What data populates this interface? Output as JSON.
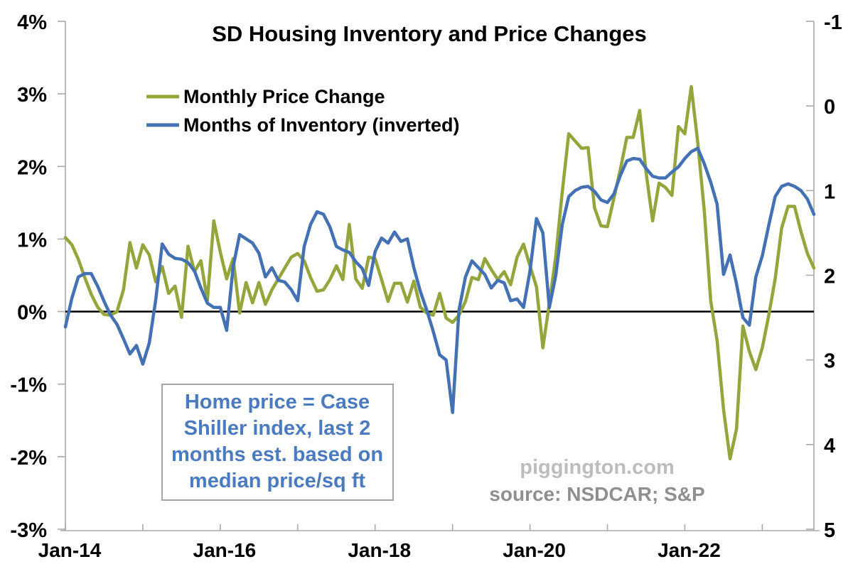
{
  "title": "SD Housing Inventory and Price Changes",
  "legend": [
    {
      "label": "Monthly Price Change",
      "color": "#94A53C"
    },
    {
      "label": "Months of Inventory (inverted)",
      "color": "#4471B3"
    }
  ],
  "annotation_box": {
    "lines": [
      "Home price = Case",
      "Shiller index, last 2",
      "months est. based on",
      "median price/sq ft"
    ],
    "text_color": "#4A7ABF",
    "border_color": "#A6A6A6"
  },
  "watermark": {
    "line1": "piggington.com",
    "line2": "source: NSDCAR; S&P",
    "line1_color": "#BDBDBD",
    "line2_color": "#8F8F8F"
  },
  "colors": {
    "axis": "#A9A9A9",
    "zero_line": "#000000",
    "background": "#FFFFFF"
  },
  "chart_data": {
    "type": "line",
    "title": "SD Housing Inventory and Price Changes",
    "x_unit": "month",
    "x_first": "Jan-14",
    "x_last": "Sep-23",
    "n_points": 117,
    "grid": false,
    "zero_line": true,
    "legend_position": "top-left",
    "x_tick_labels": [
      "Jan-14",
      "",
      "Jan-16",
      "",
      "Jan-18",
      "",
      "Jan-20",
      "",
      "Jan-22",
      ""
    ],
    "left_axis": {
      "max": 4,
      "min": -3,
      "unit": "%",
      "tick_labels": [
        "4%",
        "3%",
        "2%",
        "1%",
        "0%",
        "-1%",
        "-2%",
        "-3%"
      ]
    },
    "right_axis": {
      "max": 5,
      "min": -1,
      "inverted": true,
      "tick_labels": [
        "-1",
        "0",
        "1",
        "2",
        "3",
        "4",
        "5"
      ]
    },
    "series": [
      {
        "name": "Monthly Price Change",
        "axis": "left",
        "color": "#94A53C",
        "values": [
          1.02,
          0.92,
          0.72,
          0.47,
          0.24,
          0.06,
          -0.04,
          -0.05,
          0.0,
          0.3,
          0.95,
          0.6,
          0.92,
          0.78,
          0.41,
          0.62,
          0.25,
          0.35,
          -0.08,
          0.9,
          0.55,
          0.7,
          0.15,
          1.25,
          0.82,
          0.45,
          0.73,
          -0.02,
          0.4,
          0.12,
          0.4,
          0.1,
          0.3,
          0.45,
          0.6,
          0.75,
          0.8,
          0.7,
          0.47,
          0.28,
          0.3,
          0.44,
          0.63,
          0.44,
          1.2,
          0.45,
          0.32,
          0.75,
          0.73,
          0.44,
          0.14,
          0.39,
          0.39,
          0.13,
          0.42,
          0.06,
          -0.02,
          -0.05,
          0.25,
          -0.09,
          -0.15,
          -0.05,
          0.14,
          0.47,
          0.44,
          0.73,
          0.58,
          0.44,
          0.55,
          0.37,
          0.75,
          0.93,
          0.63,
          0.34,
          -0.5,
          0.11,
          0.76,
          1.65,
          2.45,
          2.35,
          2.25,
          2.26,
          1.43,
          1.18,
          1.17,
          1.56,
          1.96,
          2.4,
          2.4,
          2.77,
          1.91,
          1.25,
          1.77,
          1.71,
          1.6,
          2.55,
          2.45,
          3.1,
          2.33,
          1.4,
          0.15,
          -0.4,
          -1.35,
          -2.03,
          -1.62,
          -0.2,
          -0.55,
          -0.8,
          -0.5,
          -0.05,
          0.45,
          1.15,
          1.45,
          1.45,
          1.1,
          0.8,
          0.6
        ]
      },
      {
        "name": "Months of Inventory (inverted)",
        "axis": "right",
        "color": "#4471B3",
        "values": [
          2.61,
          2.27,
          2.02,
          1.98,
          1.98,
          2.13,
          2.31,
          2.47,
          2.58,
          2.75,
          2.93,
          2.83,
          3.05,
          2.8,
          2.29,
          1.63,
          1.75,
          1.8,
          1.81,
          1.85,
          1.95,
          2.15,
          2.33,
          2.38,
          2.38,
          2.65,
          1.9,
          1.52,
          1.57,
          1.62,
          1.74,
          2.02,
          1.91,
          2.06,
          2.08,
          2.17,
          2.3,
          1.66,
          1.4,
          1.25,
          1.28,
          1.43,
          1.66,
          1.7,
          1.73,
          1.84,
          1.92,
          2.12,
          1.72,
          1.56,
          1.62,
          1.49,
          1.6,
          1.57,
          1.91,
          2.19,
          2.41,
          2.66,
          2.94,
          3.0,
          3.62,
          2.41,
          2.02,
          1.83,
          1.91,
          1.99,
          2.15,
          2.06,
          2.09,
          2.3,
          2.28,
          2.38,
          1.95,
          1.33,
          1.5,
          2.38,
          2.0,
          1.4,
          1.07,
          1.0,
          0.96,
          0.95,
          1.01,
          1.11,
          1.14,
          1.04,
          0.82,
          0.65,
          0.62,
          0.63,
          0.74,
          0.83,
          0.85,
          0.85,
          0.78,
          0.72,
          0.62,
          0.54,
          0.5,
          0.68,
          0.9,
          1.16,
          1.99,
          1.76,
          2.1,
          2.5,
          2.59,
          2.02,
          1.77,
          1.41,
          1.07,
          0.95,
          0.92,
          0.95,
          1.0,
          1.1,
          1.28
        ]
      }
    ]
  }
}
